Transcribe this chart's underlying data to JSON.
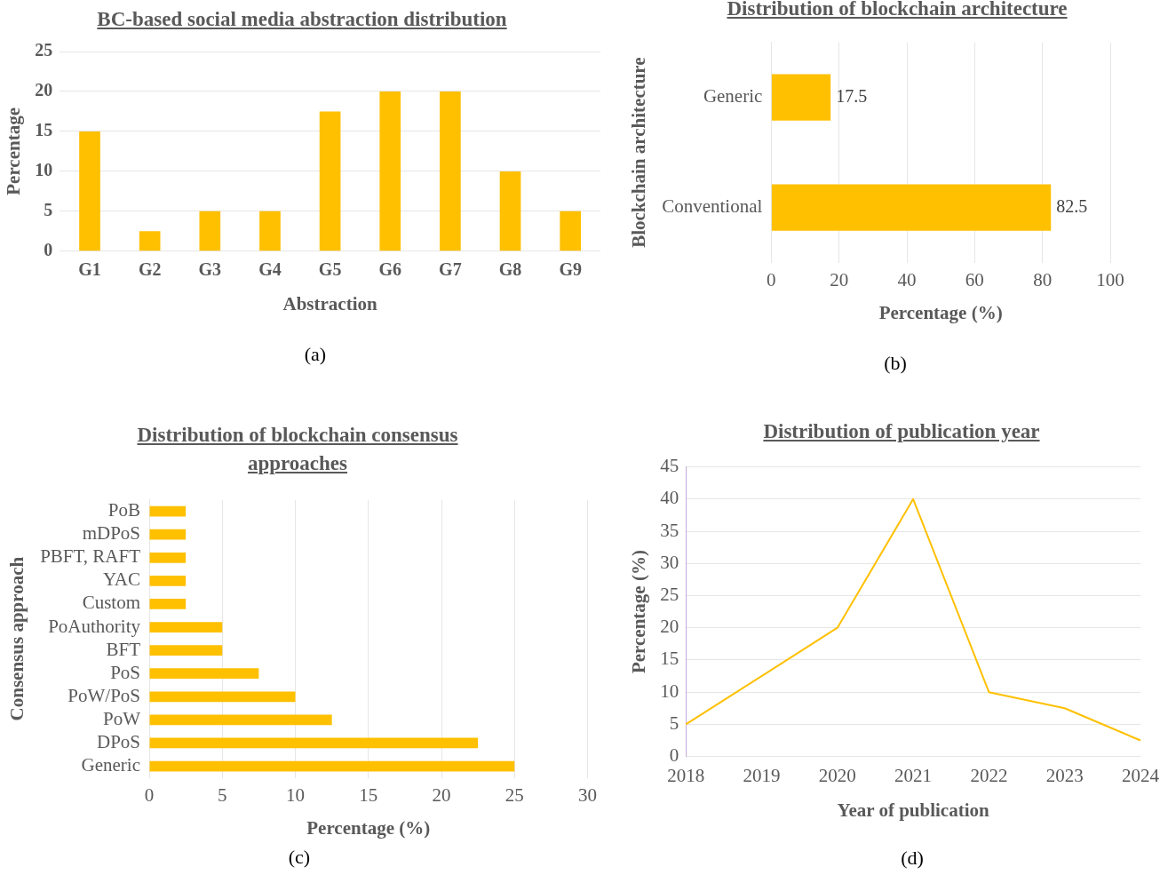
{
  "chart_data": [
    {
      "type": "bar",
      "title": "BC-based social media abstraction distribution",
      "xlabel": "Abstraction",
      "ylabel": "Percentage",
      "categories": [
        "G1",
        "G2",
        "G3",
        "G4",
        "G5",
        "G6",
        "G7",
        "G8",
        "G9"
      ],
      "values": [
        15,
        2.5,
        5,
        5,
        17.5,
        20,
        20,
        10,
        5
      ],
      "color": "#ffc000",
      "ylim": [
        0,
        25
      ],
      "yticks": [
        0,
        5,
        10,
        15,
        20,
        25
      ],
      "grid": "y",
      "annotations": [
        "(a)"
      ]
    },
    {
      "type": "bar",
      "orientation": "horizontal",
      "title": "Distribution of blockchain architecture",
      "xlabel": "Percentage (%)",
      "ylabel": "Blockchain architecture",
      "categories": [
        "Generic",
        "Conventional"
      ],
      "values": [
        17.5,
        82.5
      ],
      "color": "#ffc000",
      "xlim": [
        0,
        100
      ],
      "xticks": [
        0,
        20,
        40,
        60,
        80,
        100
      ],
      "grid": "x",
      "data_labels": true,
      "annotations": [
        "(b)"
      ]
    },
    {
      "type": "bar",
      "orientation": "horizontal",
      "title": "Distribution of blockchain consensus approaches",
      "xlabel": "Percentage (%)",
      "ylabel": "Consensus approach",
      "categories": [
        "PoB",
        "mDPoS",
        "PBFT, RAFT",
        "YAC",
        "Custom",
        "PoAuthority",
        "BFT",
        "PoS",
        "PoW/PoS",
        "PoW",
        "DPoS",
        "Generic"
      ],
      "values": [
        2.5,
        2.5,
        2.5,
        2.5,
        2.5,
        5,
        5,
        7.5,
        10,
        12.5,
        22.5,
        25
      ],
      "color": "#ffc000",
      "xlim": [
        0,
        30
      ],
      "xticks": [
        0,
        5,
        10,
        15,
        20,
        25,
        30
      ],
      "grid": "x",
      "annotations": [
        "(c)"
      ]
    },
    {
      "type": "line",
      "title": "Distribution of publication year",
      "xlabel": "Year of publication",
      "ylabel": "Percentage (%)",
      "categories": [
        "2018",
        "2019",
        "2020",
        "2021",
        "2022",
        "2023",
        "2024"
      ],
      "values": [
        5,
        12.5,
        20,
        40,
        10,
        7.5,
        2.5
      ],
      "color": "#ffc000",
      "ylim": [
        0,
        45
      ],
      "yticks": [
        0,
        5,
        10,
        15,
        20,
        25,
        30,
        35,
        40,
        45
      ],
      "grid": "y",
      "annotations": [
        "(d)"
      ]
    }
  ]
}
